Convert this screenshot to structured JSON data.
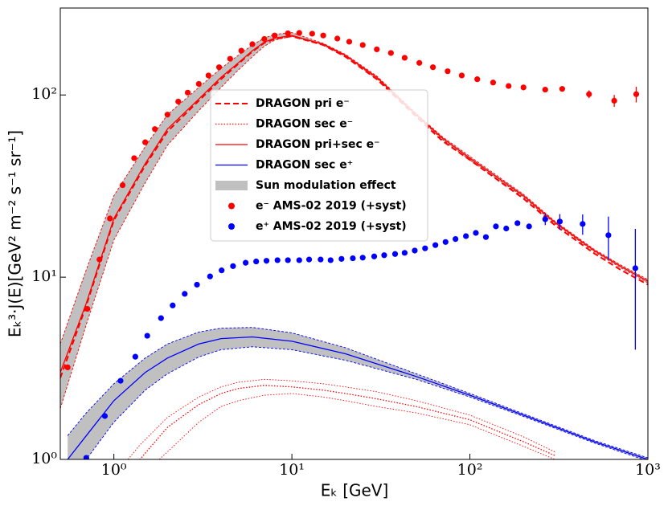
{
  "chart_data": {
    "type": "line",
    "xlabel": "Eₖ [GeV]",
    "ylabel": "Eₖ³·J(E)[GeV² m⁻² s⁻¹ sr⁻¹]",
    "xscale": "log",
    "yscale": "log",
    "xlim": [
      0.5,
      1000
    ],
    "ylim": [
      1,
      300
    ],
    "xticks": [
      {
        "value": 1,
        "label": "10⁰"
      },
      {
        "value": 10,
        "label": "10¹"
      },
      {
        "value": 100,
        "label": "10²"
      },
      {
        "value": 1000,
        "label": "10³"
      }
    ],
    "yticks": [
      {
        "value": 1,
        "label": "10⁰"
      },
      {
        "value": 10,
        "label": "10¹"
      },
      {
        "value": 100,
        "label": "10²"
      }
    ],
    "legend": "center",
    "band": {
      "name": "Sun modulation effect",
      "color": "#c0c0c0"
    },
    "series": [
      {
        "name": "DRAGON pri e⁻",
        "color": "#ff0000",
        "style": "dashed",
        "x": [
          0.5,
          0.7,
          1,
          1.5,
          2,
          3,
          4,
          5,
          6,
          7,
          8,
          10,
          15,
          20,
          30,
          50,
          70,
          100,
          200,
          300,
          500,
          700,
          1000
        ],
        "values": [
          2.8,
          7.0,
          20.5,
          41,
          63,
          93,
          122,
          148,
          173,
          193,
          203,
          210,
          188,
          162,
          122,
          76,
          56,
          44,
          27,
          19.3,
          13.5,
          11,
          9.1
        ]
      },
      {
        "name": "DRAGON sec e⁻",
        "color": "#ff0000",
        "style": "dotted",
        "x": [
          1.2,
          1.4,
          2,
          3,
          4,
          5,
          7,
          10,
          15,
          20,
          30,
          50,
          100,
          200,
          300
        ],
        "values": [
          0.9,
          1.0,
          1.5,
          2.0,
          2.3,
          2.45,
          2.55,
          2.5,
          2.4,
          2.3,
          2.15,
          1.95,
          1.65,
          1.25,
          1.05
        ],
        "upper": [
          1.0,
          1.2,
          1.7,
          2.2,
          2.5,
          2.65,
          2.75,
          2.7,
          2.6,
          2.5,
          2.35,
          2.1,
          1.75,
          1.33,
          1.1
        ],
        "lower": [
          0.7,
          0.8,
          1.1,
          1.6,
          1.95,
          2.1,
          2.25,
          2.3,
          2.2,
          2.1,
          1.95,
          1.8,
          1.55,
          1.18,
          1.0
        ]
      },
      {
        "name": "DRAGON pri+sec e⁻",
        "color": "#ff0000",
        "style": "solid",
        "fill_band": true,
        "x": [
          0.5,
          0.7,
          1,
          1.5,
          2,
          3,
          4,
          5,
          6,
          7,
          8,
          10,
          15,
          20,
          30,
          50,
          70,
          100,
          200,
          300,
          500,
          700,
          1000
        ],
        "values": [
          3.0,
          7.2,
          21,
          42,
          65,
          95,
          125,
          150,
          175,
          195,
          205,
          212,
          190,
          165,
          125,
          78,
          58,
          45,
          28,
          20,
          14,
          11.5,
          9.5
        ],
        "upper": [
          4.3,
          11,
          28,
          52,
          78,
          110,
          140,
          165,
          188,
          205,
          215,
          220,
          192,
          167,
          127,
          79,
          59,
          46,
          28.5,
          20.3,
          14.2,
          11.7,
          9.7
        ],
        "lower": [
          1.9,
          5.5,
          16,
          33,
          53,
          82,
          110,
          137,
          162,
          185,
          200,
          210,
          188,
          163,
          123,
          77,
          57,
          44,
          27.5,
          19.7,
          13.8,
          11.3,
          9.3
        ]
      },
      {
        "name": "DRAGON sec e⁺",
        "color": "#0000ff",
        "style": "solid",
        "fill_band": true,
        "x": [
          0.55,
          0.7,
          1,
          1.5,
          2,
          3,
          4,
          6,
          10,
          20,
          50,
          100,
          200,
          500,
          1000
        ],
        "values": [
          1.0,
          1.35,
          2.1,
          3.0,
          3.6,
          4.3,
          4.6,
          4.7,
          4.45,
          3.8,
          2.85,
          2.25,
          1.75,
          1.25,
          1.0
        ],
        "upper": [
          1.35,
          1.8,
          2.6,
          3.6,
          4.3,
          5.0,
          5.25,
          5.3,
          4.95,
          4.1,
          2.95,
          2.3,
          1.78,
          1.27,
          1.02
        ],
        "lower": [
          0.75,
          1.0,
          1.6,
          2.4,
          2.95,
          3.65,
          4.0,
          4.15,
          4.0,
          3.5,
          2.75,
          2.2,
          1.72,
          1.23,
          0.98
        ]
      },
      {
        "name": "e⁻ AMS-02 2019 (+syst)",
        "color": "#ff0000",
        "style": "points",
        "x": [
          0.55,
          0.71,
          0.83,
          0.95,
          1.12,
          1.3,
          1.5,
          1.7,
          2.0,
          2.3,
          2.6,
          3.0,
          3.4,
          3.9,
          4.5,
          5.2,
          6.0,
          7.0,
          8.0,
          9.5,
          11,
          13,
          15,
          18,
          21,
          25,
          30,
          36,
          43,
          52,
          62,
          75,
          90,
          110,
          135,
          165,
          200,
          265,
          330,
          467,
          647,
          860
        ],
        "values": [
          3.2,
          6.7,
          12.5,
          21,
          32,
          45,
          55,
          65,
          78,
          92,
          103,
          115,
          128,
          142,
          158,
          175,
          190,
          203,
          212,
          218,
          219,
          217,
          212,
          204,
          196,
          188,
          178,
          170,
          160,
          150,
          142,
          135,
          128,
          122,
          117,
          112,
          110,
          107,
          108,
          101,
          93,
          101
        ],
        "errors": [
          null,
          null,
          null,
          null,
          null,
          null,
          null,
          null,
          null,
          null,
          null,
          null,
          null,
          null,
          null,
          null,
          null,
          null,
          null,
          null,
          null,
          null,
          null,
          null,
          null,
          null,
          null,
          null,
          null,
          null,
          null,
          null,
          null,
          null,
          null,
          null,
          null,
          null,
          null,
          5,
          7,
          10
        ]
      },
      {
        "name": "e⁺ AMS-02 2019 (+syst)",
        "color": "#0000ff",
        "style": "points",
        "x": [
          0.7,
          0.89,
          1.09,
          1.32,
          1.54,
          1.84,
          2.14,
          2.5,
          2.93,
          3.47,
          4.03,
          4.67,
          5.5,
          6.3,
          7.2,
          8.3,
          9.5,
          11,
          12.5,
          14.5,
          16.5,
          19,
          22,
          25,
          29,
          33,
          38,
          43,
          49,
          56,
          64,
          73,
          83,
          95,
          108,
          123,
          140,
          160,
          185,
          215,
          265,
          320,
          430,
          600,
          850
        ],
        "values": [
          1.02,
          1.73,
          2.7,
          3.66,
          4.77,
          5.96,
          7.0,
          8.1,
          9.1,
          10.1,
          10.9,
          11.5,
          12.0,
          12.2,
          12.3,
          12.4,
          12.4,
          12.4,
          12.5,
          12.5,
          12.4,
          12.6,
          12.7,
          12.8,
          13.0,
          13.2,
          13.4,
          13.6,
          14.0,
          14.4,
          15.0,
          15.6,
          16.2,
          16.8,
          17.5,
          16.6,
          19.0,
          18.5,
          19.8,
          19.0,
          20.8,
          20.2,
          19.6,
          17.0,
          11.2
        ],
        "errors": [
          null,
          null,
          null,
          null,
          null,
          null,
          null,
          null,
          null,
          null,
          null,
          null,
          null,
          null,
          null,
          null,
          null,
          null,
          null,
          null,
          null,
          null,
          null,
          null,
          null,
          null,
          null,
          null,
          null,
          null,
          null,
          null,
          null,
          null,
          null,
          null,
          null,
          null,
          null,
          null,
          1.5,
          2,
          2.5,
          4.5,
          7.2
        ]
      }
    ]
  }
}
